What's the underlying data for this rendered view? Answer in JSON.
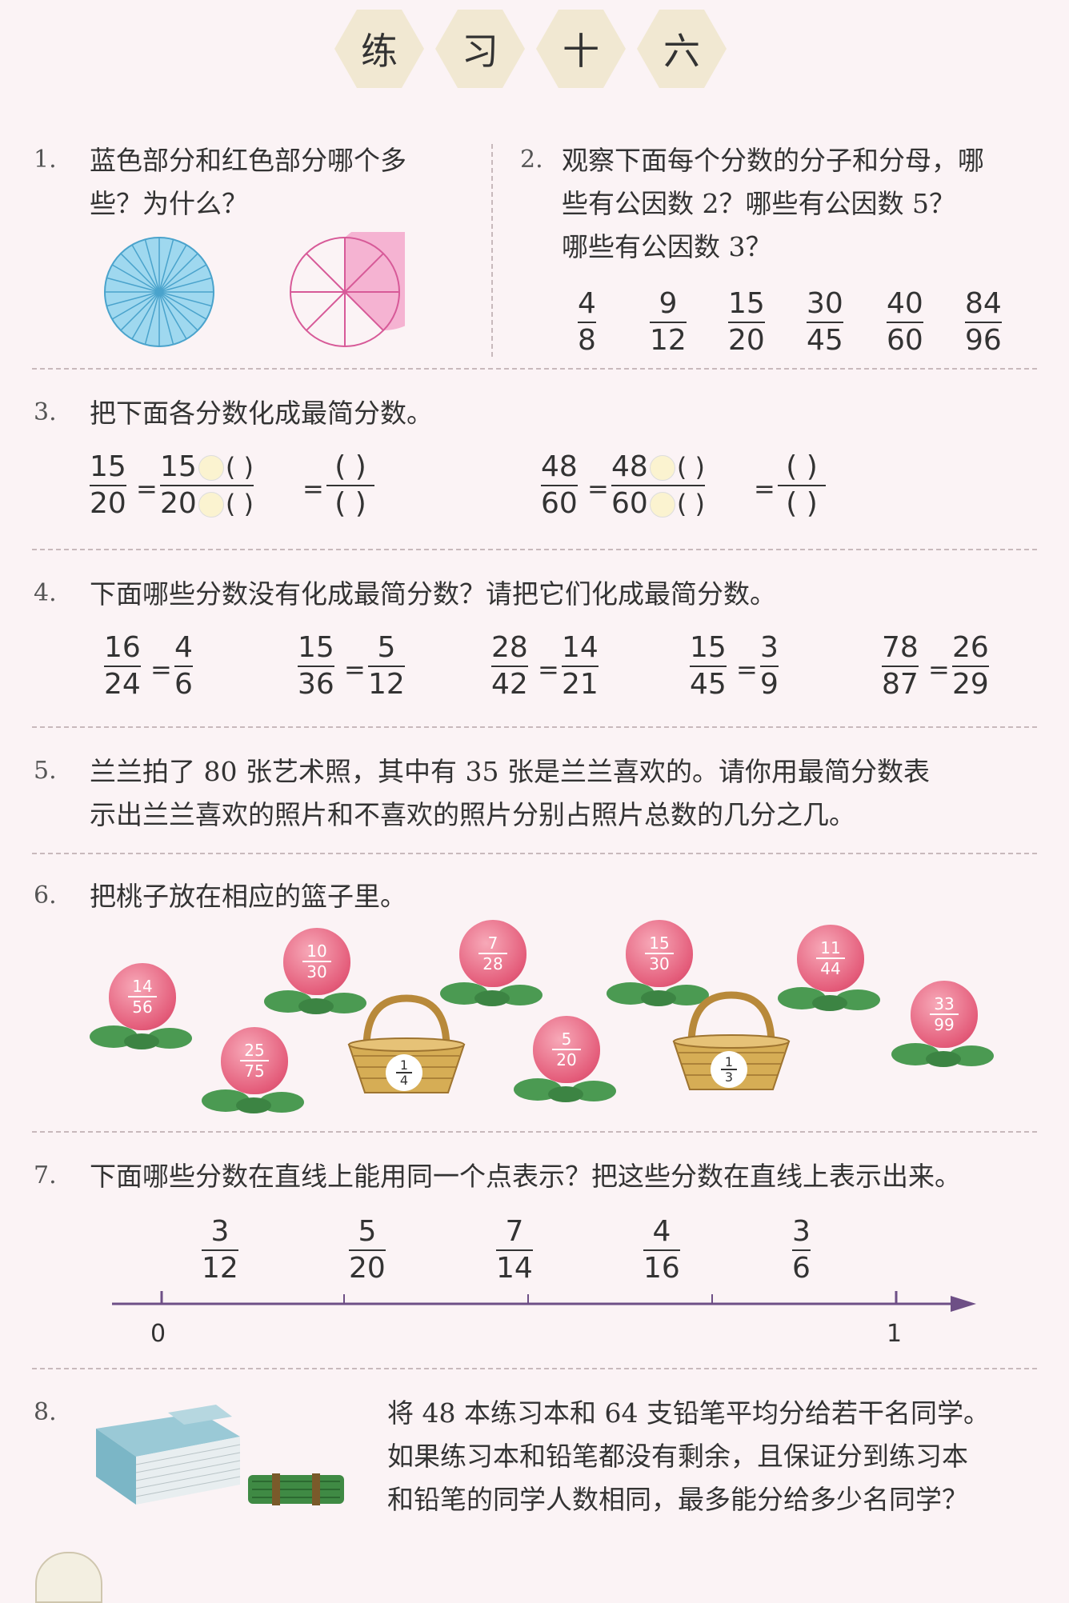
{
  "title": [
    "练",
    "习",
    "十",
    "六"
  ],
  "q1": {
    "num": "1.",
    "text": [
      "蓝色部分和红色部分哪个多",
      "些？为什么？"
    ]
  },
  "q2": {
    "num": "2.",
    "text": [
      "观察下面每个分数的分子和分母，哪",
      "些有公因数 2？哪些有公因数 5？",
      "哪些有公因数 3？"
    ],
    "fractions": [
      [
        "4",
        "8"
      ],
      [
        "9",
        "12"
      ],
      [
        "15",
        "20"
      ],
      [
        "30",
        "45"
      ],
      [
        "40",
        "60"
      ],
      [
        "84",
        "96"
      ]
    ]
  },
  "q3": {
    "num": "3.",
    "text": "把下面各分数化成最简分数。",
    "items": [
      {
        "n": "15",
        "d": "20",
        "p": "( )"
      },
      {
        "n": "48",
        "d": "60",
        "p": "( )"
      }
    ]
  },
  "q4": {
    "num": "4.",
    "text": "下面哪些分数没有化成最简分数？请把它们化成最简分数。",
    "items": [
      [
        [
          "16",
          "24"
        ],
        [
          "4",
          "6"
        ]
      ],
      [
        [
          "15",
          "36"
        ],
        [
          "5",
          "12"
        ]
      ],
      [
        [
          "28",
          "42"
        ],
        [
          "14",
          "21"
        ]
      ],
      [
        [
          "15",
          "45"
        ],
        [
          "3",
          "9"
        ]
      ],
      [
        [
          "78",
          "87"
        ],
        [
          "26",
          "29"
        ]
      ]
    ]
  },
  "q5": {
    "num": "5.",
    "text": [
      "兰兰拍了 80 张艺术照，其中有 35 张是兰兰喜欢的。请你用最简分数表",
      "示出兰兰喜欢的照片和不喜欢的照片分别占照片总数的几分之几。"
    ]
  },
  "q6": {
    "num": "6.",
    "text": "把桃子放在相应的篮子里。",
    "peaches": [
      [
        "14",
        "56"
      ],
      [
        "10",
        "30"
      ],
      [
        "25",
        "75"
      ],
      [
        "7",
        "28"
      ],
      [
        "5",
        "20"
      ],
      [
        "15",
        "30"
      ],
      [
        "11",
        "44"
      ],
      [
        "33",
        "99"
      ]
    ],
    "baskets": [
      [
        "1",
        "4"
      ],
      [
        "1",
        "3"
      ]
    ]
  },
  "q7": {
    "num": "7.",
    "text": "下面哪些分数在直线上能用同一个点表示？把这些分数在直线上表示出来。",
    "fractions": [
      [
        "3",
        "12"
      ],
      [
        "5",
        "20"
      ],
      [
        "7",
        "14"
      ],
      [
        "4",
        "16"
      ],
      [
        "3",
        "6"
      ]
    ],
    "axis": {
      "start": "0",
      "end": "1"
    }
  },
  "q8": {
    "num": "8.",
    "text": [
      "将 48 本练习本和 64 支铅笔平均分给若干名同学。",
      "如果练习本和铅笔都没有剩余，且保证分到练习本",
      "和铅笔的同学人数相同，最多能分给多少名同学？"
    ]
  },
  "colors": {
    "blue": "#7cc8e8",
    "pink": "#f3a9c8",
    "peach": "#e45c7a",
    "leaf": "#4b9a52",
    "basket": "#c9a24a"
  }
}
